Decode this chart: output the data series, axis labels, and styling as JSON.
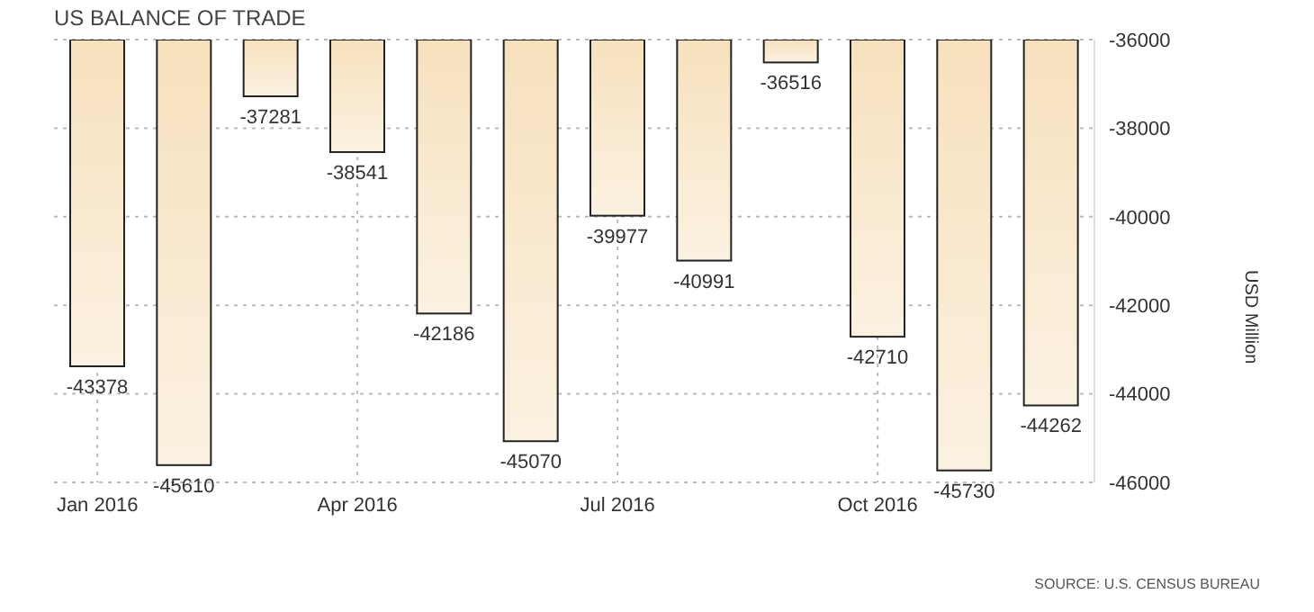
{
  "chart_data": {
    "type": "bar",
    "title": "US BALANCE OF TRADE",
    "ylabel": "USD Million",
    "annotations": [
      "SOURCE: U.S. CENSUS BUREAU"
    ],
    "categories": [
      "Jan 2016",
      null,
      null,
      "Apr 2016",
      null,
      null,
      "Jul 2016",
      null,
      null,
      "Oct 2016",
      null,
      null
    ],
    "values": [
      -43378,
      -45610,
      -37281,
      -38541,
      -42186,
      -45070,
      -39977,
      -40991,
      -36516,
      -42710,
      -45730,
      -44262
    ],
    "color": "#f7e1bd",
    "ylim": [
      -46000,
      -36000
    ],
    "yticks": [
      -46000,
      -44000,
      -42000,
      -40000,
      -38000,
      -36000
    ],
    "grid": true,
    "data_labels": true
  }
}
